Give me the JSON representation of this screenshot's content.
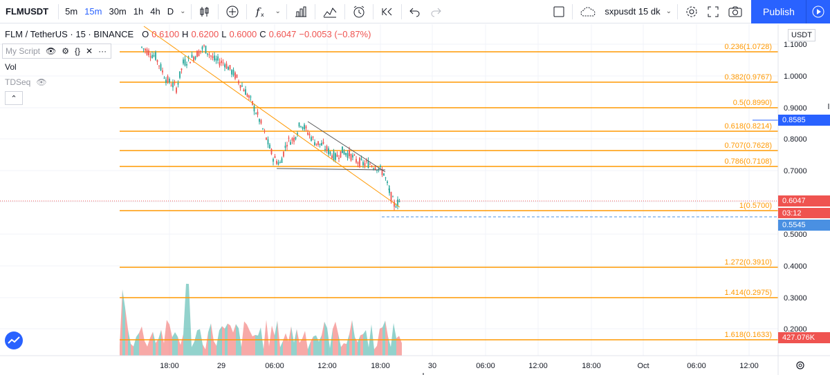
{
  "toolbar": {
    "symbol": "FLMUSDT",
    "intervals": [
      "5m",
      "15m",
      "30m",
      "1h",
      "4h",
      "D"
    ],
    "active_interval": "15m",
    "layout_name": "sxpusdt 15 dk",
    "publish_label": "Publish"
  },
  "legend": {
    "pair": "FLM / TetherUS · 15 · BINANCE",
    "o_label": "O",
    "o_value": "0.6100",
    "h_label": "H",
    "h_value": "0.6200",
    "l_label": "L",
    "l_value": "0.6000",
    "c_label": "C",
    "c_value": "0.6047",
    "change": "−0.0053 (−0.87%)"
  },
  "panes": {
    "my_script": "My Script",
    "vol": "Vol",
    "tdseq": "TDSeq"
  },
  "currency": "USDT",
  "price_axis": {
    "ticks": [
      "1.1000",
      "1.0000",
      "0.9000",
      "0.8000",
      "0.7000",
      "0.5000",
      "0.4000",
      "0.3000",
      "0.2000"
    ]
  },
  "time_axis": {
    "ticks": [
      "18:00",
      "29",
      "06:00",
      "12:00",
      "18:00",
      "30",
      "06:00",
      "12:00",
      "18:00",
      "Oct",
      "06:00",
      "12:00"
    ]
  },
  "fibonacci": [
    {
      "label": "0.236(1.0728)"
    },
    {
      "label": "0.382(0.9767)"
    },
    {
      "label": "0.5(0.8990)"
    },
    {
      "label": "0.618(0.8214)"
    },
    {
      "label": "0.707(0.7628)"
    },
    {
      "label": "0.786(0.7108)"
    },
    {
      "label": "1(0.5700)"
    },
    {
      "label": "1.272(0.3910)"
    },
    {
      "label": "1.414(0.2975)"
    },
    {
      "label": "1.618(0.1633)"
    }
  ],
  "price_labels": {
    "alert": "0.8585",
    "last": "0.6047",
    "countdown": "03:12",
    "target": "0.5545",
    "volume": "427.076K"
  },
  "colors": {
    "fib": "#ff9800",
    "up": "#26a69a",
    "down": "#ef5350",
    "accent": "#2962ff",
    "alert": "#2962ff",
    "target": "#4a90e2"
  }
}
